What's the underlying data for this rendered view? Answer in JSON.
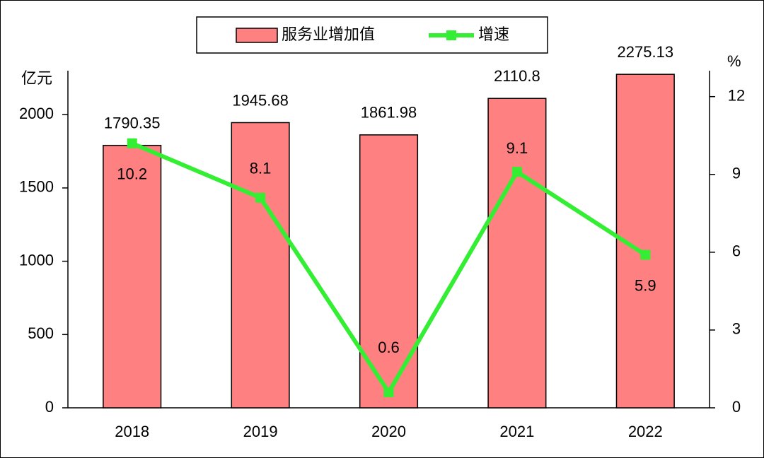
{
  "chart_data": {
    "type": "bar",
    "categories": [
      "2018",
      "2019",
      "2020",
      "2021",
      "2022"
    ],
    "series": [
      {
        "name": "服务业增加值",
        "color": "#ff8080",
        "values": [
          1790.35,
          1945.68,
          1861.98,
          2110.8,
          2275.13
        ]
      },
      {
        "name": "增速",
        "color": "#33ee33",
        "type": "line",
        "axis": "y2",
        "values": [
          10.2,
          8.1,
          0.6,
          9.1,
          5.9
        ]
      }
    ],
    "ylabel": "亿元",
    "y2label": "%",
    "ylim": [
      0,
      2300
    ],
    "yticks": [
      0,
      500,
      1000,
      1500,
      2000
    ],
    "y2lim": [
      0,
      13
    ],
    "y2ticks": [
      0,
      3,
      6,
      9,
      12
    ],
    "legend": "top"
  }
}
